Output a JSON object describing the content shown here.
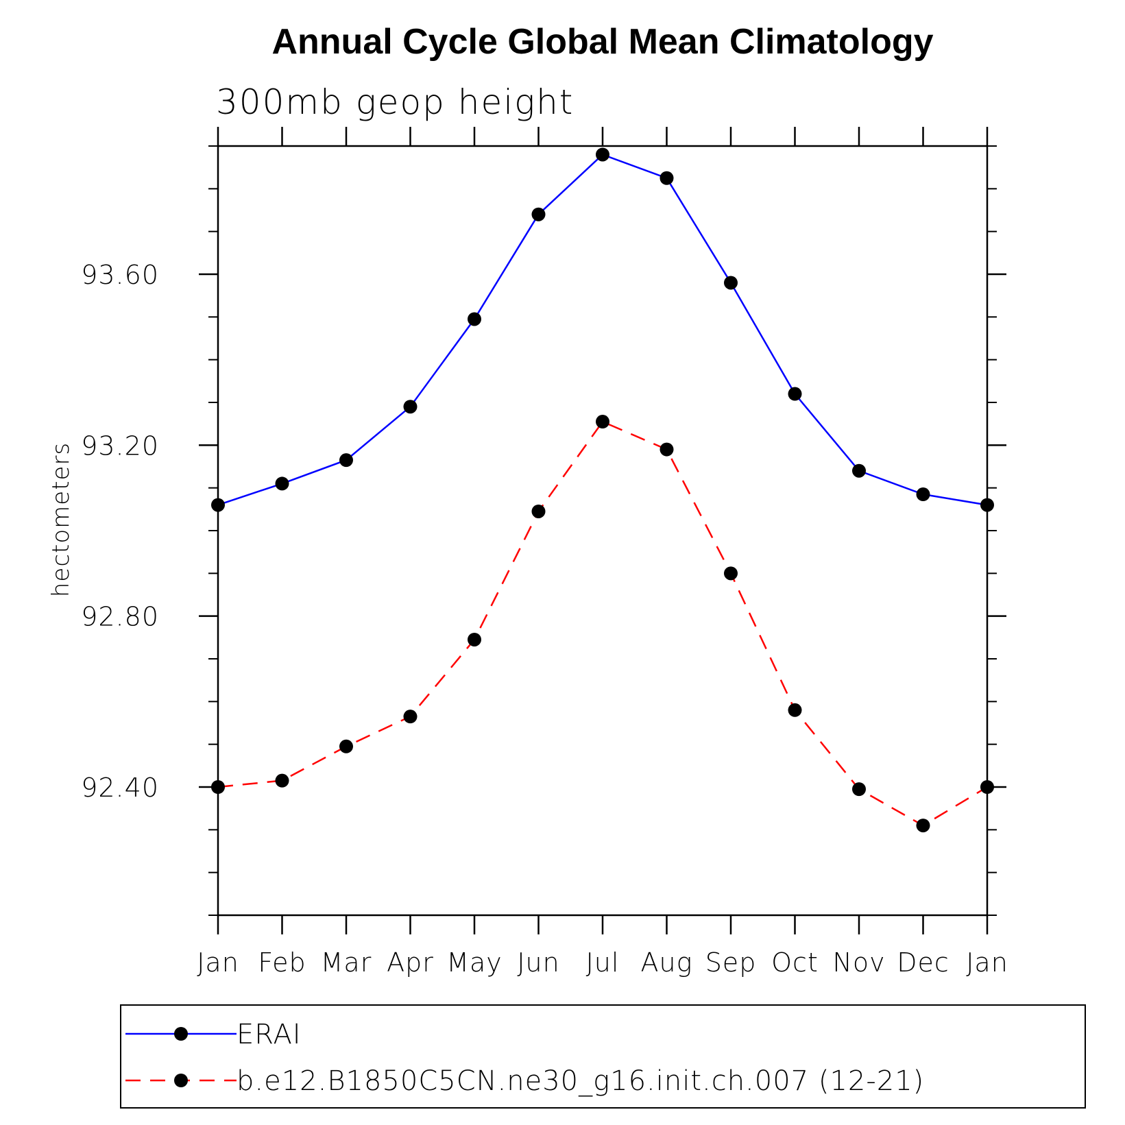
{
  "chart_data": {
    "type": "line",
    "title": "Annual Cycle Global Mean Climatology",
    "subtitle": "300mb geop height",
    "ylabel": "hectometers",
    "xlabel": "",
    "categories": [
      "Jan",
      "Feb",
      "Mar",
      "Apr",
      "May",
      "Jun",
      "Jul",
      "Aug",
      "Sep",
      "Oct",
      "Nov",
      "Dec",
      "Jan"
    ],
    "ylim": [
      92.1,
      93.9
    ],
    "y_major_ticks": [
      92.4,
      92.8,
      93.2,
      93.6
    ],
    "y_minor_step": 0.1,
    "y_tick_format": "2dp",
    "grid": false,
    "legend_position": "bottom",
    "series": [
      {
        "name": "ERAI",
        "color": "#0000ff",
        "dash": "solid",
        "marker": "filled-circle",
        "values": [
          93.06,
          93.11,
          93.165,
          93.29,
          93.495,
          93.74,
          93.88,
          93.825,
          93.58,
          93.32,
          93.14,
          93.085,
          93.06
        ]
      },
      {
        "name": "b.e12.B1850C5CN.ne30_g16.init.ch.007 (12-21)",
        "color": "#ff0000",
        "dash": "dashed",
        "marker": "filled-circle",
        "values": [
          92.4,
          92.415,
          92.495,
          92.565,
          92.745,
          93.045,
          93.255,
          93.19,
          92.9,
          92.58,
          92.395,
          92.31,
          92.4
        ]
      }
    ]
  }
}
